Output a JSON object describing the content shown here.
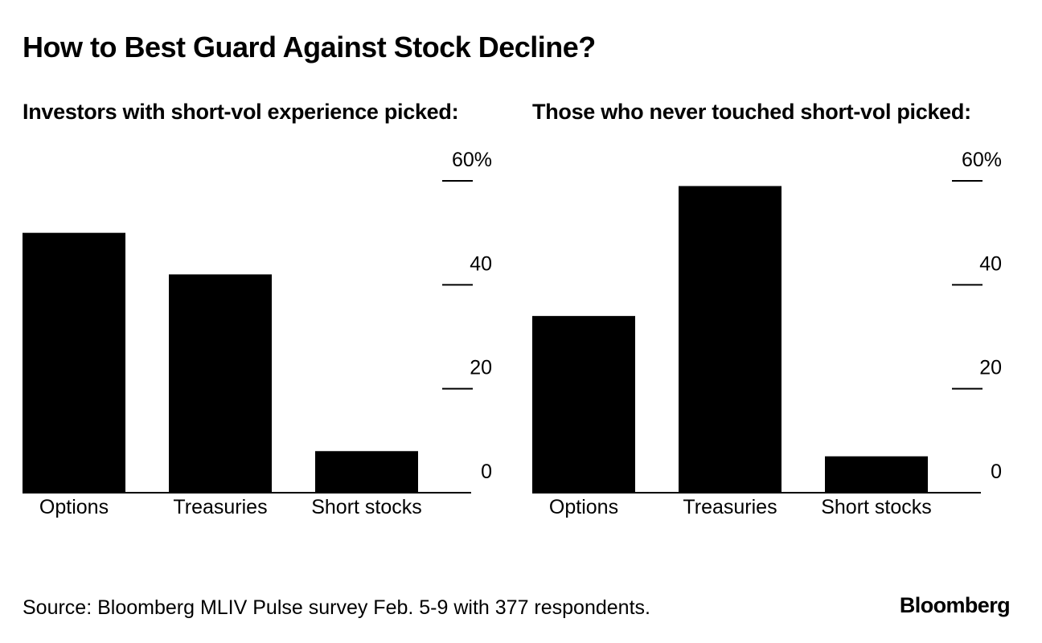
{
  "title": "How to Best Guard Against Stock Decline?",
  "source": "Source: Bloomberg MLIV Pulse survey Feb. 5-9 with 377 respondents.",
  "brand": "Bloomberg",
  "chart_data": [
    {
      "type": "bar",
      "title": "Investors with short-vol experience picked:",
      "categories": [
        "Options",
        "Treasuries",
        "Short stocks"
      ],
      "values": [
        50,
        42,
        8
      ],
      "ylim": [
        0,
        60
      ],
      "yticks": [
        0,
        20,
        40,
        60
      ],
      "ytick_labels": [
        "0",
        "20",
        "40",
        "60%"
      ],
      "xlabel": "",
      "ylabel": "",
      "bar_color": "#000000"
    },
    {
      "type": "bar",
      "title": "Those who never touched short-vol picked:",
      "categories": [
        "Options",
        "Treasuries",
        "Short stocks"
      ],
      "values": [
        34,
        59,
        7
      ],
      "ylim": [
        0,
        60
      ],
      "yticks": [
        0,
        20,
        40,
        60
      ],
      "ytick_labels": [
        "0",
        "20",
        "40",
        "60%"
      ],
      "xlabel": "",
      "ylabel": "",
      "bar_color": "#000000"
    }
  ]
}
